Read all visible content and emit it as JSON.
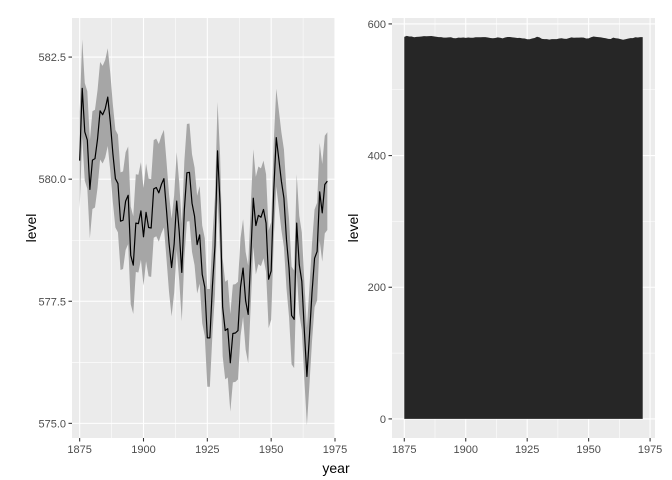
{
  "colors": {
    "panel_background": "#ebebeb",
    "grid": "#ffffff",
    "line": "#000000",
    "ribbon": "#a6a6a6",
    "area_fill": "#262626",
    "tick_text": "#4d4d4d"
  },
  "chart_data": [
    {
      "type": "line",
      "subtype": "line-with-ribbon",
      "title": "",
      "xlabel": "year",
      "ylabel": "level",
      "xlim": [
        1872,
        1975
      ],
      "ylim": [
        574.7,
        583.3
      ],
      "x_ticks": [
        1875,
        1900,
        1925,
        1950,
        1975
      ],
      "x_tick_labels": [
        "1875",
        "1900",
        "1925",
        "1950",
        "1975"
      ],
      "y_ticks": [
        575.0,
        577.5,
        580.0,
        582.5
      ],
      "y_tick_labels": [
        "575.0",
        "577.5",
        "580.0",
        "582.5"
      ],
      "grid": true,
      "ribbon_halfwidth": 1,
      "series": [
        {
          "x": [
            1875,
            1876,
            1877,
            1878,
            1879,
            1880,
            1881,
            1882,
            1883,
            1884,
            1885,
            1886,
            1887,
            1888,
            1889,
            1890,
            1891,
            1892,
            1893,
            1894,
            1895,
            1896,
            1897,
            1898,
            1899,
            1900,
            1901,
            1902,
            1903,
            1904,
            1905,
            1906,
            1907,
            1908,
            1909,
            1910,
            1911,
            1912,
            1913,
            1914,
            1915,
            1916,
            1917,
            1918,
            1919,
            1920,
            1921,
            1922,
            1923,
            1924,
            1925,
            1926,
            1927,
            1928,
            1929,
            1930,
            1931,
            1932,
            1933,
            1934,
            1935,
            1936,
            1937,
            1938,
            1939,
            1940,
            1941,
            1942,
            1943,
            1944,
            1945,
            1946,
            1947,
            1948,
            1949,
            1950,
            1951,
            1952,
            1953,
            1954,
            1955,
            1956,
            1957,
            1958,
            1959,
            1960,
            1961,
            1962,
            1963,
            1964,
            1965,
            1966,
            1967,
            1968,
            1969,
            1970,
            1971,
            1972
          ],
          "values": [
            580.38,
            581.86,
            580.97,
            580.8,
            579.79,
            580.39,
            580.42,
            580.82,
            581.4,
            581.32,
            581.44,
            581.68,
            581.17,
            580.53,
            580.01,
            579.91,
            579.14,
            579.16,
            579.55,
            579.67,
            578.44,
            578.24,
            579.1,
            579.09,
            579.35,
            578.82,
            579.32,
            579.01,
            579.0,
            579.8,
            579.83,
            579.72,
            579.89,
            580.01,
            579.37,
            578.69,
            578.19,
            578.67,
            579.55,
            578.92,
            578.09,
            579.37,
            580.13,
            580.14,
            579.51,
            579.24,
            578.66,
            578.86,
            578.05,
            577.79,
            576.75,
            576.75,
            577.82,
            578.64,
            580.58,
            579.48,
            577.38,
            576.9,
            576.94,
            576.24,
            576.84,
            576.85,
            576.9,
            577.79,
            578.18,
            577.51,
            577.23,
            578.42,
            579.61,
            579.05,
            579.26,
            579.22,
            579.38,
            579.1,
            577.95,
            578.12,
            579.75,
            580.85,
            580.41,
            579.96,
            579.61,
            578.76,
            578.18,
            577.21,
            577.13,
            579.1,
            578.25,
            577.91,
            576.89,
            575.96,
            576.8,
            577.68,
            578.38,
            578.52,
            579.74,
            579.31,
            579.89,
            579.96
          ]
        }
      ]
    },
    {
      "type": "area",
      "title": "",
      "xlabel": "",
      "ylabel": "level",
      "xlim": [
        1870,
        1977
      ],
      "ylim": [
        -29,
        609
      ],
      "x_ticks": [
        1875,
        1900,
        1925,
        1950,
        1975
      ],
      "x_tick_labels": [
        "1875",
        "1900",
        "1925",
        "1950",
        "1975"
      ],
      "y_ticks": [
        0,
        200,
        400,
        600
      ],
      "y_tick_labels": [
        "0",
        "200",
        "400",
        "600"
      ],
      "grid": true,
      "series": [
        {
          "x": [
            1875,
            1876,
            1877,
            1878,
            1879,
            1880,
            1881,
            1882,
            1883,
            1884,
            1885,
            1886,
            1887,
            1888,
            1889,
            1890,
            1891,
            1892,
            1893,
            1894,
            1895,
            1896,
            1897,
            1898,
            1899,
            1900,
            1901,
            1902,
            1903,
            1904,
            1905,
            1906,
            1907,
            1908,
            1909,
            1910,
            1911,
            1912,
            1913,
            1914,
            1915,
            1916,
            1917,
            1918,
            1919,
            1920,
            1921,
            1922,
            1923,
            1924,
            1925,
            1926,
            1927,
            1928,
            1929,
            1930,
            1931,
            1932,
            1933,
            1934,
            1935,
            1936,
            1937,
            1938,
            1939,
            1940,
            1941,
            1942,
            1943,
            1944,
            1945,
            1946,
            1947,
            1948,
            1949,
            1950,
            1951,
            1952,
            1953,
            1954,
            1955,
            1956,
            1957,
            1958,
            1959,
            1960,
            1961,
            1962,
            1963,
            1964,
            1965,
            1966,
            1967,
            1968,
            1969,
            1970,
            1971,
            1972
          ],
          "values": [
            580.38,
            581.86,
            580.97,
            580.8,
            579.79,
            580.39,
            580.42,
            580.82,
            581.4,
            581.32,
            581.44,
            581.68,
            581.17,
            580.53,
            580.01,
            579.91,
            579.14,
            579.16,
            579.55,
            579.67,
            578.44,
            578.24,
            579.1,
            579.09,
            579.35,
            578.82,
            579.32,
            579.01,
            579.0,
            579.8,
            579.83,
            579.72,
            579.89,
            580.01,
            579.37,
            578.69,
            578.19,
            578.67,
            579.55,
            578.92,
            578.09,
            579.37,
            580.13,
            580.14,
            579.51,
            579.24,
            578.66,
            578.86,
            578.05,
            577.79,
            576.75,
            576.75,
            577.82,
            578.64,
            580.58,
            579.48,
            577.38,
            576.9,
            576.94,
            576.24,
            576.84,
            576.85,
            576.9,
            577.79,
            578.18,
            577.51,
            577.23,
            578.42,
            579.61,
            579.05,
            579.26,
            579.22,
            579.38,
            579.1,
            577.95,
            578.12,
            579.75,
            580.85,
            580.41,
            579.96,
            579.61,
            578.76,
            578.18,
            577.21,
            577.13,
            579.1,
            578.25,
            577.91,
            576.89,
            575.96,
            576.8,
            577.68,
            578.38,
            578.52,
            579.74,
            579.31,
            579.89,
            579.96
          ]
        }
      ]
    }
  ]
}
